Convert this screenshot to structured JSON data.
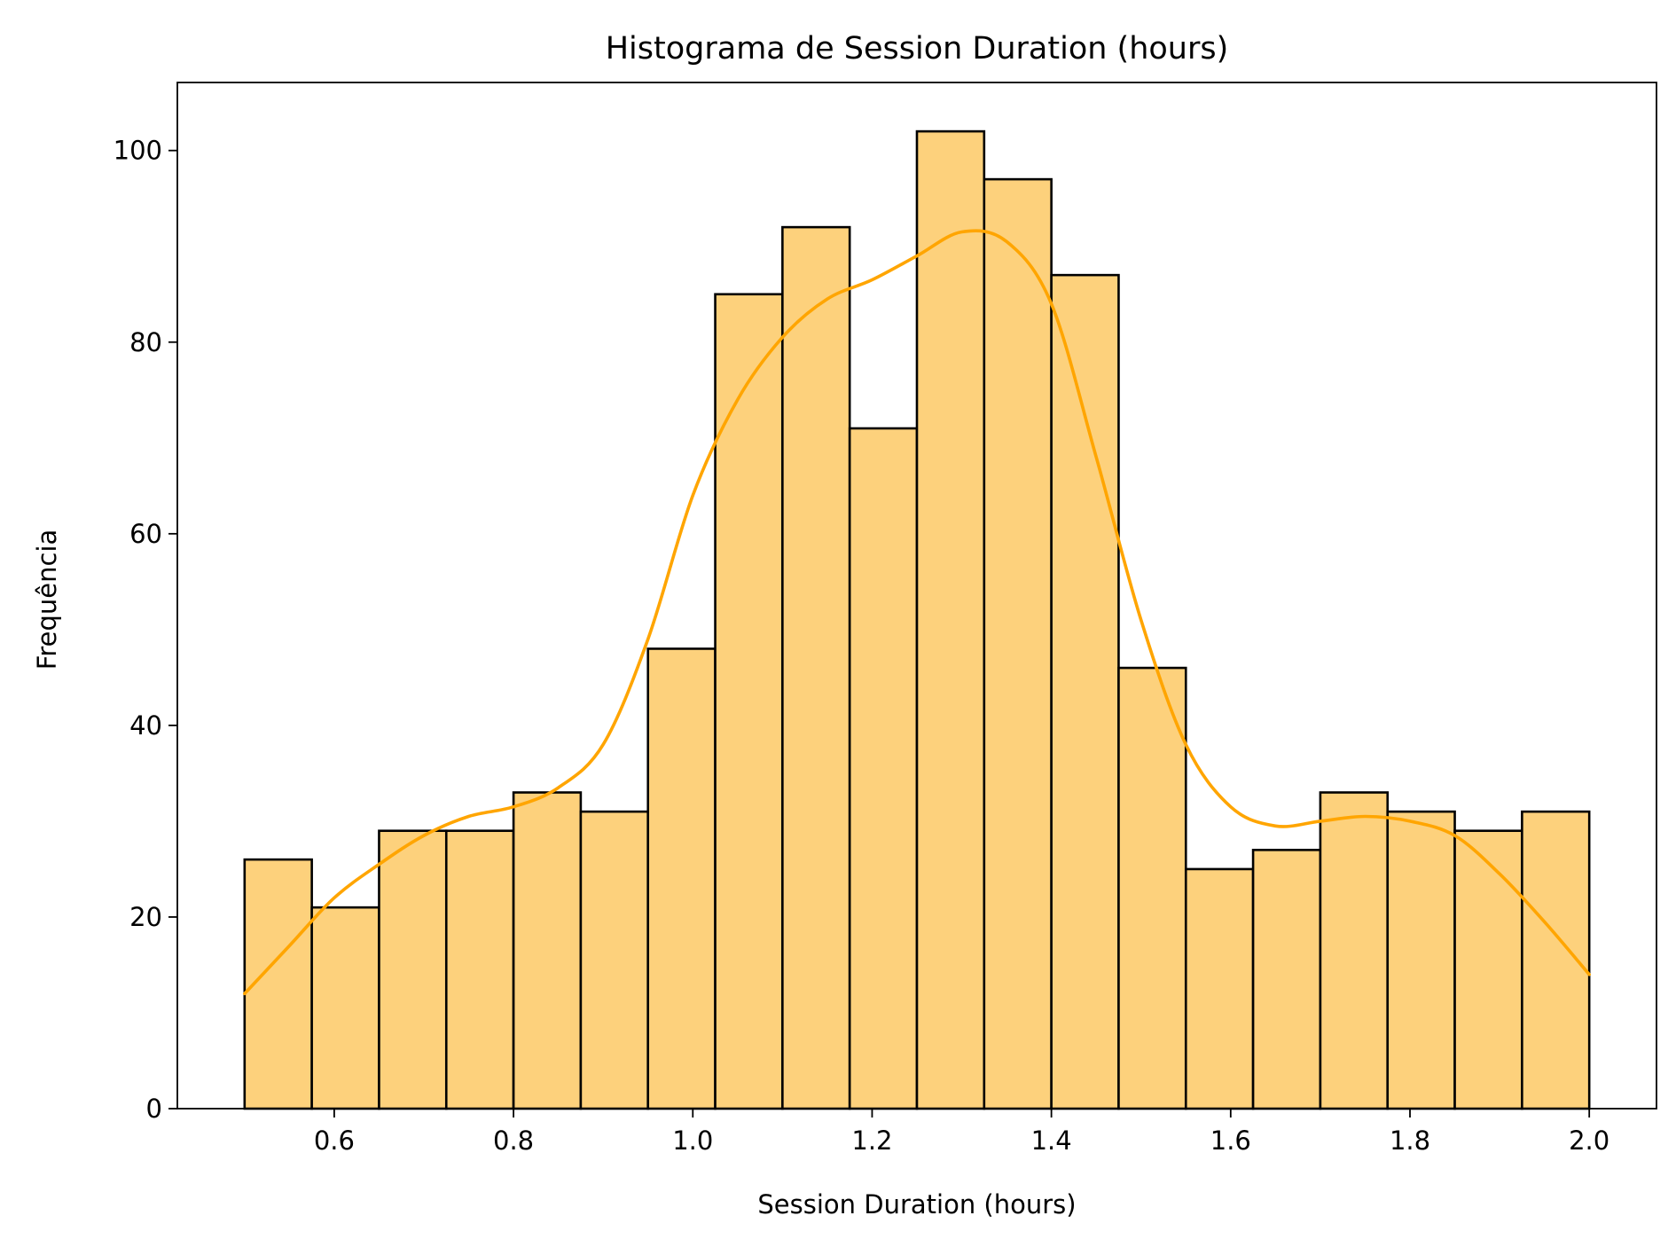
{
  "chart_data": {
    "type": "bar",
    "subtype": "histogram",
    "title": "Histograma de Session Duration (hours)",
    "xlabel": "Session Duration (hours)",
    "ylabel": "Frequência",
    "bin_edges": [
      0.5,
      0.575,
      0.65,
      0.725,
      0.8,
      0.875,
      0.95,
      1.025,
      1.1,
      1.175,
      1.25,
      1.325,
      1.4,
      1.475,
      1.55,
      1.625,
      1.7,
      1.775,
      1.85,
      1.925,
      2.0
    ],
    "values": [
      26,
      21,
      29,
      29,
      33,
      31,
      48,
      85,
      92,
      71,
      102,
      97,
      87,
      46,
      25,
      27,
      33,
      31,
      29,
      31
    ],
    "xlim": [
      0.425,
      2.075
    ],
    "ylim": [
      0,
      107.1
    ],
    "xticks": [
      0.6,
      0.8,
      1.0,
      1.2,
      1.4,
      1.6,
      1.8,
      2.0
    ],
    "xtick_labels": [
      "0.6",
      "0.8",
      "1.0",
      "1.2",
      "1.4",
      "1.6",
      "1.8",
      "2.0"
    ],
    "yticks": [
      0,
      20,
      40,
      60,
      80,
      100
    ],
    "ytick_labels": [
      "0",
      "20",
      "40",
      "60",
      "80",
      "100"
    ],
    "kde": {
      "x": [
        0.5,
        0.55,
        0.6,
        0.65,
        0.7,
        0.75,
        0.8,
        0.85,
        0.9,
        0.95,
        1.0,
        1.05,
        1.1,
        1.15,
        1.2,
        1.25,
        1.3,
        1.35,
        1.4,
        1.45,
        1.5,
        1.55,
        1.6,
        1.65,
        1.7,
        1.75,
        1.8,
        1.85,
        1.9,
        1.95,
        2.0
      ],
      "y": [
        12,
        17,
        22,
        25.5,
        28.5,
        30.5,
        31.5,
        33.5,
        38,
        49,
        64,
        74,
        80.5,
        84.5,
        86.5,
        89,
        91.5,
        90.5,
        84,
        68,
        51,
        38,
        31.5,
        29.5,
        30,
        30.5,
        30,
        28.5,
        24.5,
        19.5,
        14
      ]
    },
    "bar_fill": "#fdd17c",
    "bar_edge": "#000000",
    "line_color": "#ffa500",
    "grid": false,
    "legend": "none"
  }
}
